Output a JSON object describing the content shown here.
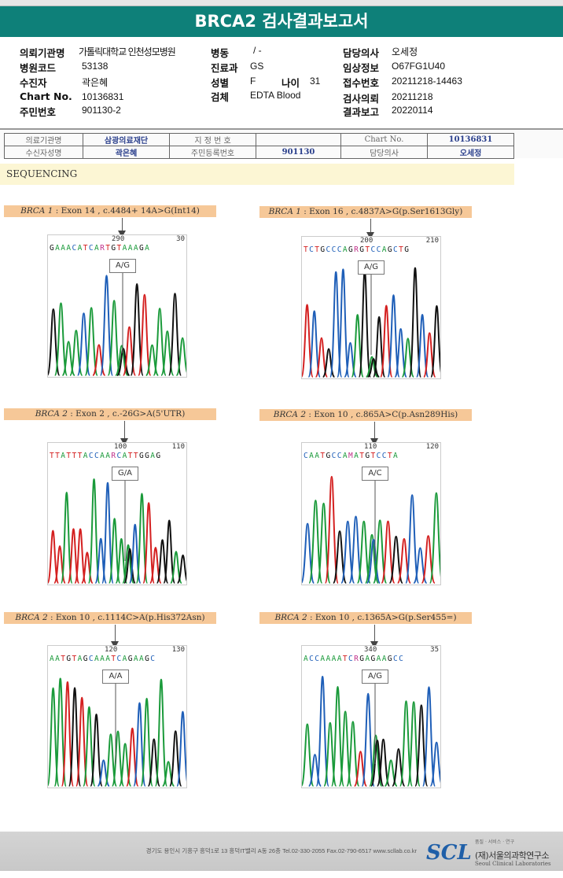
{
  "title": "BRCA2 검사결과보고서",
  "info": {
    "left": [
      {
        "k": "의뢰기관명",
        "v": "가톨릭대학교 인천성모병원"
      },
      {
        "k": "병원코드",
        "v": "53138"
      },
      {
        "k": "수진자",
        "v": "곽은혜"
      },
      {
        "k": "Chart No.",
        "v": "10136831"
      },
      {
        "k": "주민번호",
        "v": "901130-2"
      }
    ],
    "mid": [
      {
        "k": "병동",
        "v": "/ -"
      },
      {
        "k": "진료과",
        "v": "GS"
      },
      {
        "k": "성별",
        "v": "F"
      },
      {
        "k": "검체",
        "v": "EDTA Blood"
      }
    ],
    "age": {
      "k": "나이",
      "v": "31"
    },
    "right": [
      {
        "k": "담당의사",
        "v": "오세정"
      },
      {
        "k": "임상정보",
        "v": "O67FG1U40"
      },
      {
        "k": "접수번호",
        "v": "20211218-14463"
      },
      {
        "k": "검사의뢰",
        "v": "20211218"
      },
      {
        "k": "결과보고",
        "v": "20220114"
      }
    ]
  },
  "scan": {
    "r1": [
      "의료기관명",
      "삼광의료재단",
      "지 정 번 호",
      "",
      "Chart No.",
      "10136831"
    ],
    "r2": [
      "수신자성명",
      "곽은혜",
      "주민등록번호",
      "901130",
      "담당의사",
      "오세정"
    ]
  },
  "section": "SEQUENCING",
  "variants": [
    {
      "gene": "BRCA 1",
      "desc": " : Exon 14 , c.4484+ 14A>G(Int14)",
      "p1": "290",
      "p2": "30",
      "seq": "GAAACATCARTGTAAAGA",
      "gt": "A/G"
    },
    {
      "gene": "BRCA 1",
      "desc": " : Exon 16 , c.4837A>G(p.Ser1613Gly)",
      "p1": "200",
      "p2": "210",
      "seq": "TCTGCCCAGRGTCCAGCTG",
      "gt": "A/G"
    },
    {
      "gene": "BRCA 2",
      "desc": " : Exon 2 , c.-26G>A(5'UTR)",
      "p1": "100",
      "p2": "110",
      "seq": "TTATTTACCAARCATTGGAG",
      "gt": "G/A"
    },
    {
      "gene": "BRCA 2",
      "desc": " : Exon 10 , c.865A>C(p.Asn289His)",
      "p1": "110",
      "p2": "120",
      "seq": "CAATGCCAMATGTCCTA",
      "gt": "A/C"
    },
    {
      "gene": "BRCA 2",
      "desc": " : Exon 10 , c.1114C>A(p.His372Asn)",
      "p1": "120",
      "p2": "130",
      "seq": "AATGTAGCAAATCAGAAGC",
      "gt": "A/A"
    },
    {
      "gene": "BRCA 2",
      "desc": " : Exon 10 , c.1365A>G(p.Ser455=)",
      "p1": "340",
      "p2": "35",
      "seq": "ACCAAAATCRGAGAAGCC",
      "gt": "A/G"
    }
  ],
  "base_colors": {
    "A": "#1a9a3a",
    "C": "#1f5fb8",
    "G": "#111111",
    "T": "#d42020",
    "R": "#c0308a",
    "M": "#c0308a"
  },
  "footer": {
    "address": "경기도 용인시 기흥구 흥덕1로 13 흥덕IT밸리 A동 26층  Tel.02-330-2055  Fax.02-790-6517  www.scllab.co.kr",
    "logo": "SCL",
    "org_sub": "품질 · 서비스 · 연구",
    "org": "(재)서울의과학연구소",
    "org_en": "Seoul Clinical Laboratories"
  }
}
